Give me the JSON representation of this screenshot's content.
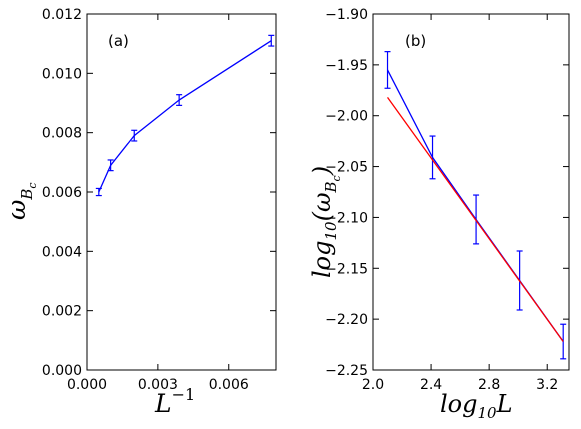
{
  "chart_data": [
    {
      "type": "line",
      "panel_label": "(a)",
      "xlabel": "L",
      "xlabel_sup": "−1",
      "ylabel": "ω",
      "ylabel_sub": "B",
      "ylabel_subsub": "c",
      "xlim": [
        0,
        0.008
      ],
      "ylim": [
        0,
        0.012
      ],
      "xticks": [
        0.0,
        0.003,
        0.006
      ],
      "xtick_labels": [
        "0.000",
        "0.003",
        "0.006"
      ],
      "yticks": [
        0,
        0.002,
        0.004,
        0.006,
        0.008,
        0.01,
        0.012
      ],
      "ytick_labels": [
        "0.000",
        "0.002",
        "0.004",
        "0.006",
        "0.008",
        "0.010",
        "0.012"
      ],
      "grid": false,
      "series": [
        {
          "color": "#0000ff",
          "x": [
            0.0005,
            0.001,
            0.002,
            0.0039,
            0.0078
          ],
          "y": [
            0.006,
            0.0069,
            0.0079,
            0.0091,
            0.0111
          ],
          "err": [
            0.00012,
            0.00018,
            0.00018,
            0.00018,
            0.00018
          ]
        }
      ]
    },
    {
      "type": "line",
      "panel_label": "(b)",
      "xlabel": "log",
      "xlabel_sub": "10",
      "xlabel_tail": "L",
      "ylabel_pre": "log",
      "ylabel_sub": "10",
      "ylabel_mid": "(ω",
      "ylabel_subsub": "B",
      "ylabel_subsubsub": "c",
      "ylabel_post": ")",
      "xlim": [
        2.0,
        3.35
      ],
      "ylim": [
        -2.25,
        -1.9
      ],
      "xticks": [
        2.0,
        2.4,
        2.8,
        3.2
      ],
      "xtick_labels": [
        "2.0",
        "2.4",
        "2.8",
        "3.2"
      ],
      "yticks": [
        -2.25,
        -2.2,
        -2.15,
        -2.1,
        -2.05,
        -2.0,
        -1.95,
        -1.9
      ],
      "ytick_labels": [
        "−2.25",
        "−2.20",
        "−2.15",
        "−2.10",
        "−2.05",
        "−2.00",
        "−1.95",
        "−1.90"
      ],
      "grid": false,
      "series": [
        {
          "color": "#0000ff",
          "x": [
            2.1,
            2.41,
            2.71,
            3.01,
            3.31
          ],
          "y": [
            -1.955,
            -2.041,
            -2.102,
            -2.162,
            -2.222
          ],
          "err": [
            0.018,
            0.021,
            0.024,
            0.029,
            0.017
          ]
        },
        {
          "color": "#ff0000",
          "x": [
            2.1,
            3.31
          ],
          "y": [
            -1.982,
            -2.222
          ]
        }
      ]
    }
  ]
}
